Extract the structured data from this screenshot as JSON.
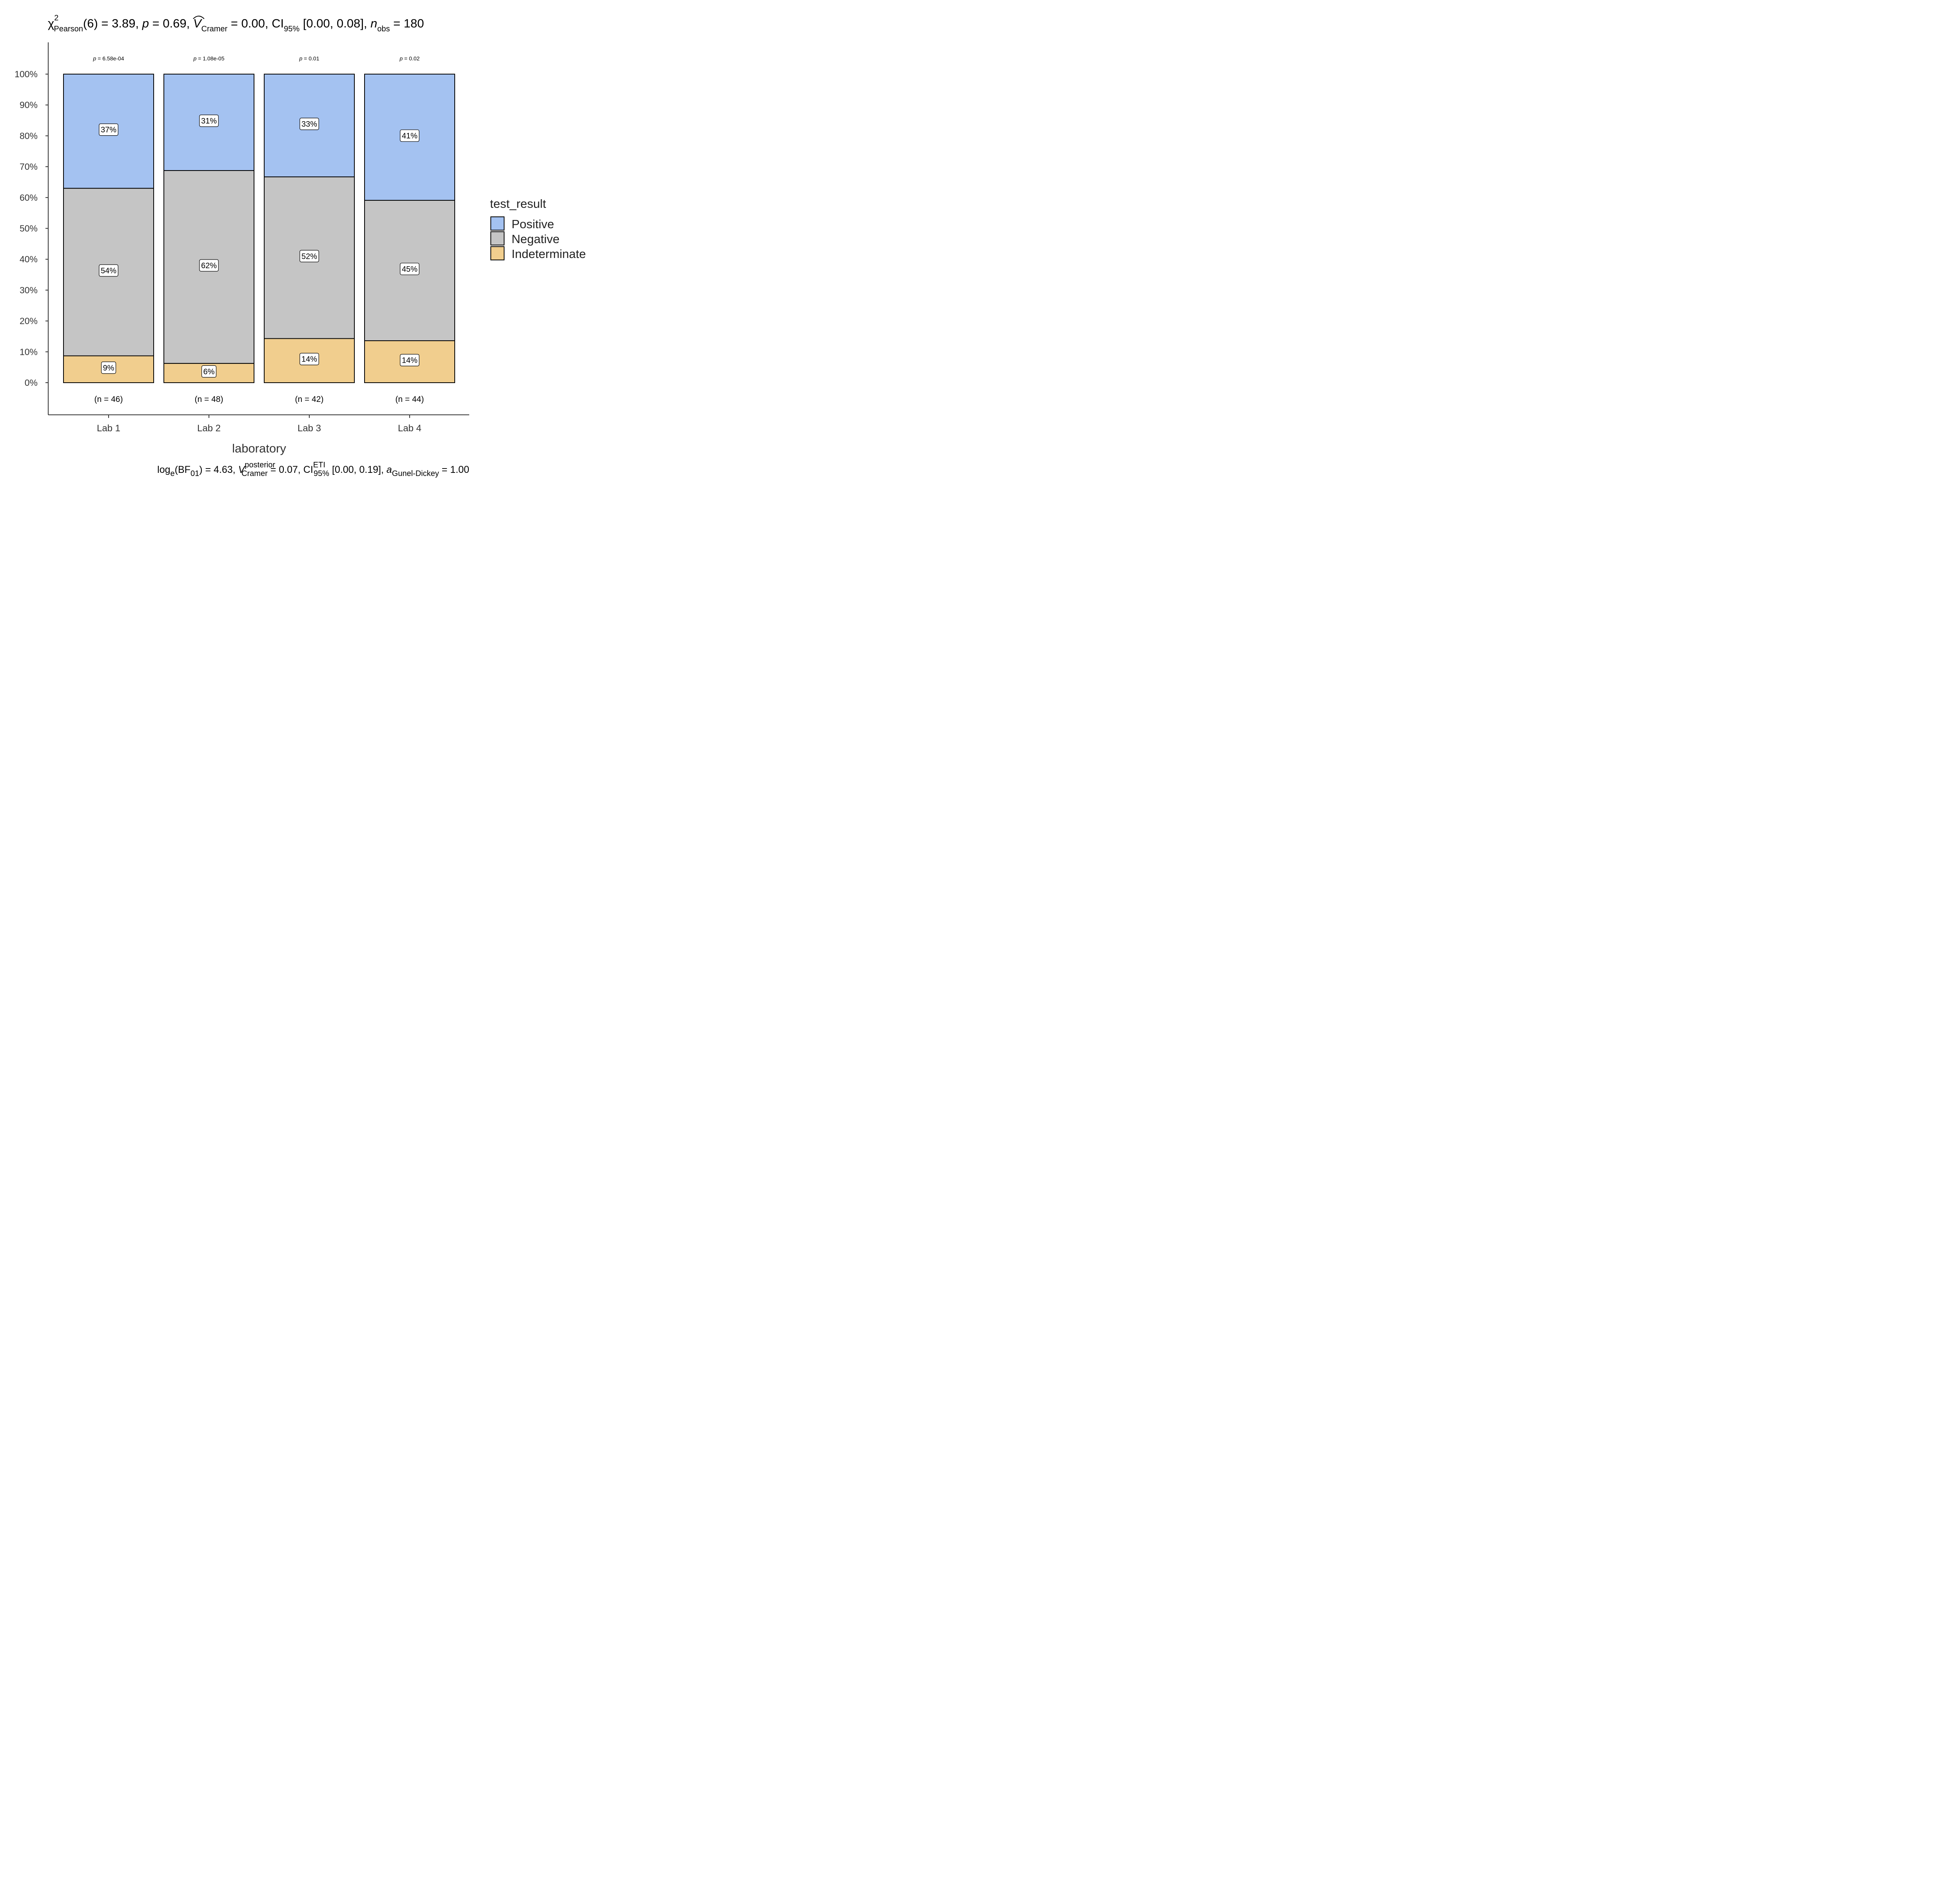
{
  "chart_data": {
    "type": "bar",
    "stacked": true,
    "percent": true,
    "title": {
      "chi": "χ",
      "chi_sup": "2",
      "chi_sub": "Pearson",
      "df": "(6) = 3.89, ",
      "p_sym": "p",
      "p_val": " = 0.69, ",
      "v_sym": "V",
      "v_sub": "Cramer",
      "v_val": " = 0.00, CI",
      "ci_sub": "95%",
      "ci_val": " [0.00, 0.08], ",
      "n_sym": "n",
      "n_sub": "obs",
      "n_val": " = 180"
    },
    "caption": {
      "log": "log",
      "log_sub": "e",
      "bf_open": "(BF",
      "bf_sub": "01",
      "bf_val": ") = 4.63, ",
      "v_sym": "V",
      "v_sup": "posterior",
      "v_sub": "Cramer",
      "v_val": " = 0.07, CI",
      "ci_sup": "ETI",
      "ci_sub": "95%",
      "ci_val": " [0.00, 0.19], ",
      "a_sym": "a",
      "a_sub": "Gunel-Dickey",
      "a_val": " = 1.00"
    },
    "xlabel": "laboratory",
    "ylabel": "",
    "ylim": [
      0,
      100
    ],
    "yticks": [
      "0%",
      "10%",
      "20%",
      "30%",
      "40%",
      "50%",
      "60%",
      "70%",
      "80%",
      "90%",
      "100%"
    ],
    "categories": [
      "Lab 1",
      "Lab 2",
      "Lab 3",
      "Lab 4"
    ],
    "series": [
      {
        "name": "Indeterminate",
        "color": "#F1CE8E",
        "values": [
          8.7,
          6.25,
          14.3,
          13.6
        ],
        "labels": [
          "9%",
          "6%",
          "14%",
          "14%"
        ]
      },
      {
        "name": "Negative",
        "color": "#C5C5C5",
        "values": [
          54.3,
          62.5,
          52.4,
          45.5
        ],
        "labels": [
          "54%",
          "62%",
          "52%",
          "45%"
        ]
      },
      {
        "name": "Positive",
        "color": "#A4C2F1",
        "values": [
          37.0,
          31.25,
          33.3,
          40.9
        ],
        "labels": [
          "37%",
          "31%",
          "33%",
          "41%"
        ]
      }
    ],
    "p_values": [
      {
        "sym": "p",
        "val": " = 6.58e-04"
      },
      {
        "sym": "p",
        "val": " = 1.08e-05"
      },
      {
        "sym": "p",
        "val": " = 0.01"
      },
      {
        "sym": "p",
        "val": " = 0.02"
      }
    ],
    "n_labels": [
      "(n = 46)",
      "(n = 48)",
      "(n = 42)",
      "(n = 44)"
    ],
    "legend": {
      "title": "test_result",
      "position": "right",
      "items": [
        {
          "name": "Positive",
          "color": "#A4C2F1"
        },
        {
          "name": "Negative",
          "color": "#C5C5C5"
        },
        {
          "name": "Indeterminate",
          "color": "#F1CE8E"
        }
      ]
    },
    "grid": false
  }
}
